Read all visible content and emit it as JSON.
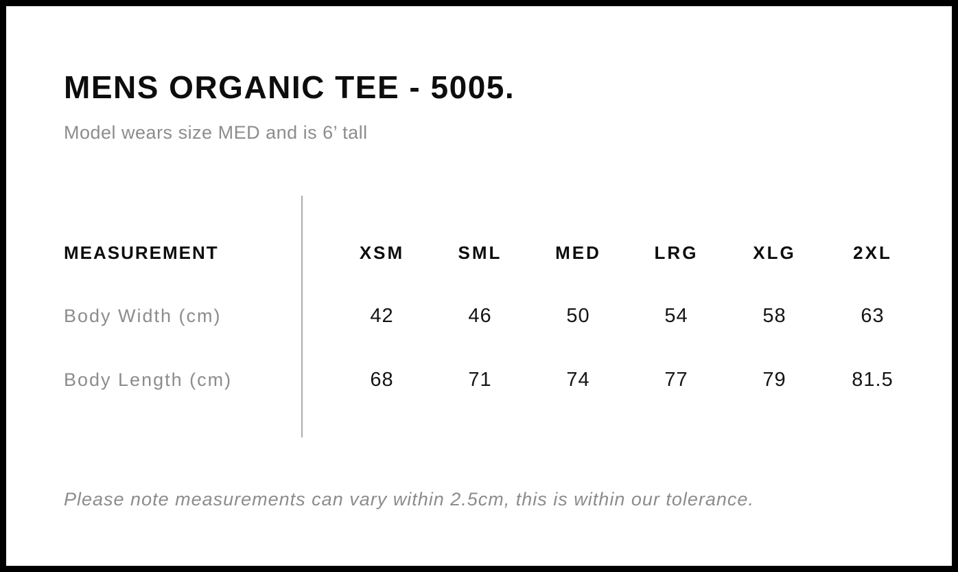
{
  "header": {
    "title": "MENS ORGANIC TEE - 5005.",
    "subtitle": "Model wears size MED and is 6’ tall"
  },
  "size_table": {
    "measurement_header": "MEASUREMENT",
    "sizes": [
      "XSM",
      "SML",
      "MED",
      "LRG",
      "XLG",
      "2XL"
    ],
    "rows": [
      {
        "label": "Body Width (cm)",
        "values": [
          "42",
          "46",
          "50",
          "54",
          "58",
          "63"
        ]
      },
      {
        "label": "Body Length (cm)",
        "values": [
          "68",
          "71",
          "74",
          "77",
          "79",
          "81.5"
        ]
      }
    ]
  },
  "footer": {
    "note": "Please note measurements can vary within 2.5cm, this is within our tolerance."
  },
  "colors": {
    "text_primary": "#0d0d0d",
    "text_muted": "#8c8c8c",
    "divider": "#ababab",
    "frame": "#000000"
  }
}
